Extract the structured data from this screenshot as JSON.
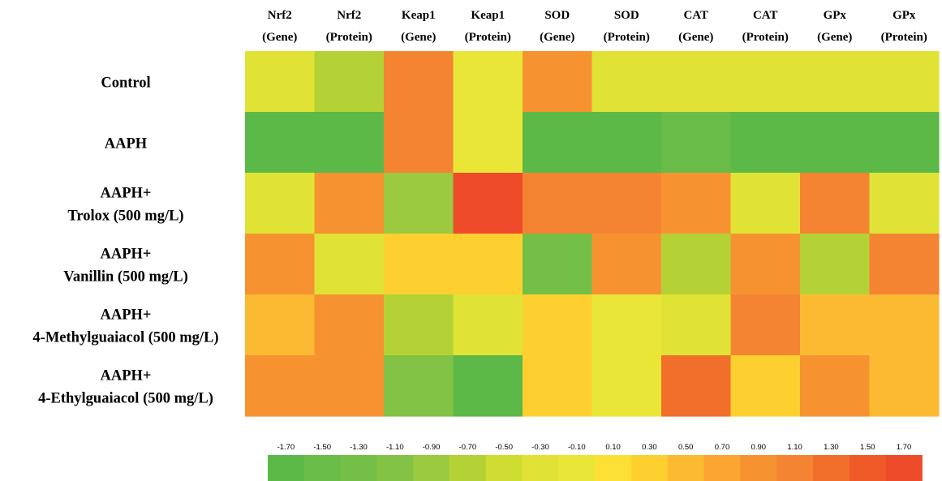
{
  "chart_data": {
    "type": "heatmap",
    "columns": [
      [
        "Nrf2",
        "(Gene)"
      ],
      [
        "Nrf2",
        "(Protein)"
      ],
      [
        "Keap1",
        "(Gene)"
      ],
      [
        "Keap1",
        "(Protein)"
      ],
      [
        "SOD",
        "(Gene)"
      ],
      [
        "SOD",
        "(Protein)"
      ],
      [
        "CAT",
        "(Gene)"
      ],
      [
        "CAT",
        "(Protein)"
      ],
      [
        "GPx",
        "(Gene)"
      ],
      [
        "GPx",
        "(Protein)"
      ]
    ],
    "rows": [
      [
        "Control"
      ],
      [
        "AAPH"
      ],
      [
        "AAPH+",
        "Trolox (500 mg/L)"
      ],
      [
        "AAPH+",
        "Vanillin (500 mg/L)"
      ],
      [
        "AAPH+",
        "4-Methylguaiacol (500 mg/L)"
      ],
      [
        "AAPH+",
        "4-Ethylguaiacol (500 mg/L)"
      ]
    ],
    "values": [
      [
        -0.3,
        -0.7,
        1.1,
        -0.1,
        0.9,
        -0.3,
        -0.2,
        -0.2,
        -0.3,
        -0.3
      ],
      [
        -1.7,
        -1.7,
        1.1,
        -0.1,
        -1.7,
        -1.7,
        -1.5,
        -1.7,
        -1.7,
        -1.7
      ],
      [
        -0.3,
        0.9,
        -0.9,
        1.6,
        1.1,
        1.1,
        0.9,
        -0.3,
        1.2,
        -0.3
      ],
      [
        1.0,
        -0.2,
        0.2,
        0.2,
        -1.3,
        0.8,
        -0.7,
        0.9,
        -0.6,
        1.1
      ],
      [
        0.4,
        0.8,
        -0.7,
        -0.2,
        0.2,
        0.0,
        -0.2,
        1.1,
        0.4,
        0.6
      ],
      [
        0.9,
        0.8,
        -1.1,
        -1.7,
        0.2,
        0.0,
        1.4,
        0.2,
        1.0,
        0.4
      ]
    ],
    "legend": {
      "ticks": [
        "-1.70",
        "-1.50",
        "-1.30",
        "-1.10",
        "-0.90",
        "-0.70",
        "-0.50",
        "-0.30",
        "-0.10",
        "0.10",
        "0.30",
        "0.50",
        "0.70",
        "0.90",
        "1.10",
        "1.30",
        "1.50",
        "1.70"
      ],
      "colors": [
        "#5cb947",
        "#68bc47",
        "#74bf46",
        "#82c345",
        "#9bc93f",
        "#b4d236",
        "#cfdc31",
        "#e0e335",
        "#eae638",
        "#fde035",
        "#fdd030",
        "#fcba33",
        "#fca432",
        "#f79231",
        "#f48432",
        "#f26f2b",
        "#f05a28",
        "#ee4b2b"
      ]
    },
    "grid": false,
    "legend_placement": "bottom"
  }
}
